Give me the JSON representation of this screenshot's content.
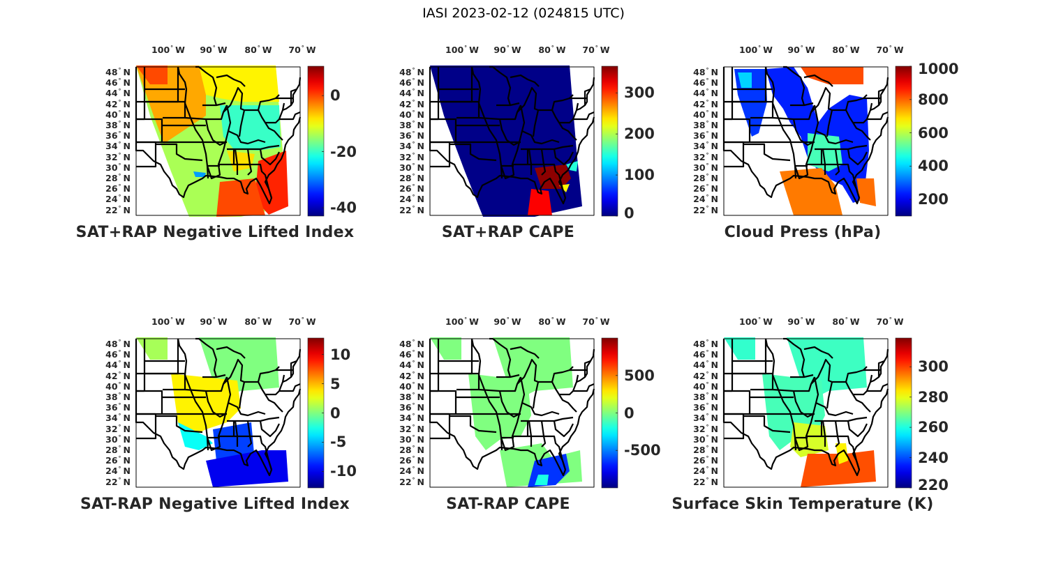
{
  "figure": {
    "title": "IASI 2023-02-12 (024815 UTC)"
  },
  "axes": {
    "lon_ticks": [
      "100",
      "90",
      "80",
      "70"
    ],
    "lon_suffix": "W",
    "lat_ticks": [
      "48",
      "46",
      "44",
      "42",
      "40",
      "38",
      "36",
      "34",
      "32",
      "30",
      "28",
      "26",
      "24",
      "22"
    ],
    "lat_suffix": "N",
    "degree_symbol": "°"
  },
  "chart_data": [
    {
      "type": "heatmap",
      "title": "SAT+RAP Negative Lifted Index",
      "colormap": "jet",
      "clim": [
        -43,
        10.5
      ],
      "colorbar_ticks": [
        "0",
        "-20",
        "-40"
      ],
      "colorbar_tick_values": [
        0,
        -20,
        -40
      ],
      "xlabel_ticks": [
        "100° W",
        "90° W",
        "80° W",
        "70° W"
      ],
      "ylabel_ticks": [
        "48° N",
        "46° N",
        "44° N",
        "42° N",
        "40° N",
        "38° N",
        "36° N",
        "34° N",
        "32° N",
        "30° N",
        "28° N",
        "26° N",
        "24° N",
        "22° N"
      ],
      "summary": "Yellow/orange (~-5 to 0) over northern plains, cyan-green (~-20 to -15) over Midwest and Ohio Valley, red (~0 to 5) off the Southeast coast and Gulf of Mexico east of Florida"
    },
    {
      "type": "heatmap",
      "title": "SAT+RAP CAPE",
      "colormap": "jet",
      "clim": [
        0,
        365
      ],
      "colorbar_ticks": [
        "0",
        "100",
        "200",
        "300"
      ],
      "colorbar_tick_values": [
        0,
        100,
        200,
        300
      ],
      "summary": "Near 0 everywhere in swath; values >300 over Florida and adjacent Atlantic / eastern Gulf"
    },
    {
      "type": "heatmap",
      "title": "Cloud Press (hPa)",
      "colormap": "jet",
      "clim": [
        100,
        1000
      ],
      "colorbar_ticks": [
        "1000",
        "800",
        "600",
        "400",
        "200"
      ],
      "colorbar_tick_values": [
        1000,
        800,
        600,
        400,
        200
      ],
      "summary": "High clouds (~200-300 hPa) over central/eastern US, mid-level (~500 hPa) over Southeast, low clouds (~800 hPa) over Gulf of Mexico and near Lake Superior"
    },
    {
      "type": "heatmap",
      "title": "SAT-RAP Negative Lifted Index",
      "colormap": "jet",
      "clim": [
        -12.8,
        12.8
      ],
      "colorbar_ticks": [
        "10",
        "5",
        "0",
        "-5",
        "-10"
      ],
      "colorbar_tick_values": [
        10,
        5,
        0,
        -5,
        -10
      ],
      "summary": "Positive (~3-5) over Plains and Midwest, near 0 north, negative (~-10) over Southeast, Gulf and Atlantic off Florida"
    },
    {
      "type": "heatmap",
      "title": "SAT-RAP CAPE",
      "colormap": "jet",
      "clim": [
        -1000,
        1000
      ],
      "colorbar_ticks": [
        "500",
        "0",
        "-500"
      ],
      "colorbar_tick_values": [
        500,
        0,
        -500
      ],
      "summary": "Near 0 across most of swath; strongly negative (~-700 to -900) over Florida and adjacent waters"
    },
    {
      "type": "heatmap",
      "title": "Surface Skin Temperature (K)",
      "colormap": "jet",
      "clim": [
        220,
        319
      ],
      "colorbar_ticks": [
        "300",
        "280",
        "260",
        "240",
        "220"
      ],
      "colorbar_tick_values": [
        300,
        280,
        260,
        240,
        220
      ],
      "summary": "~265-270 K over northern/central US, ~280 K along Gulf Coast, ~295-300 K over Gulf of Mexico and Atlantic off Florida"
    }
  ],
  "colors": {
    "jet_stops": [
      "#00008f",
      "#0000ff",
      "#00ffff",
      "#ffff00",
      "#ff0000",
      "#800000"
    ]
  }
}
